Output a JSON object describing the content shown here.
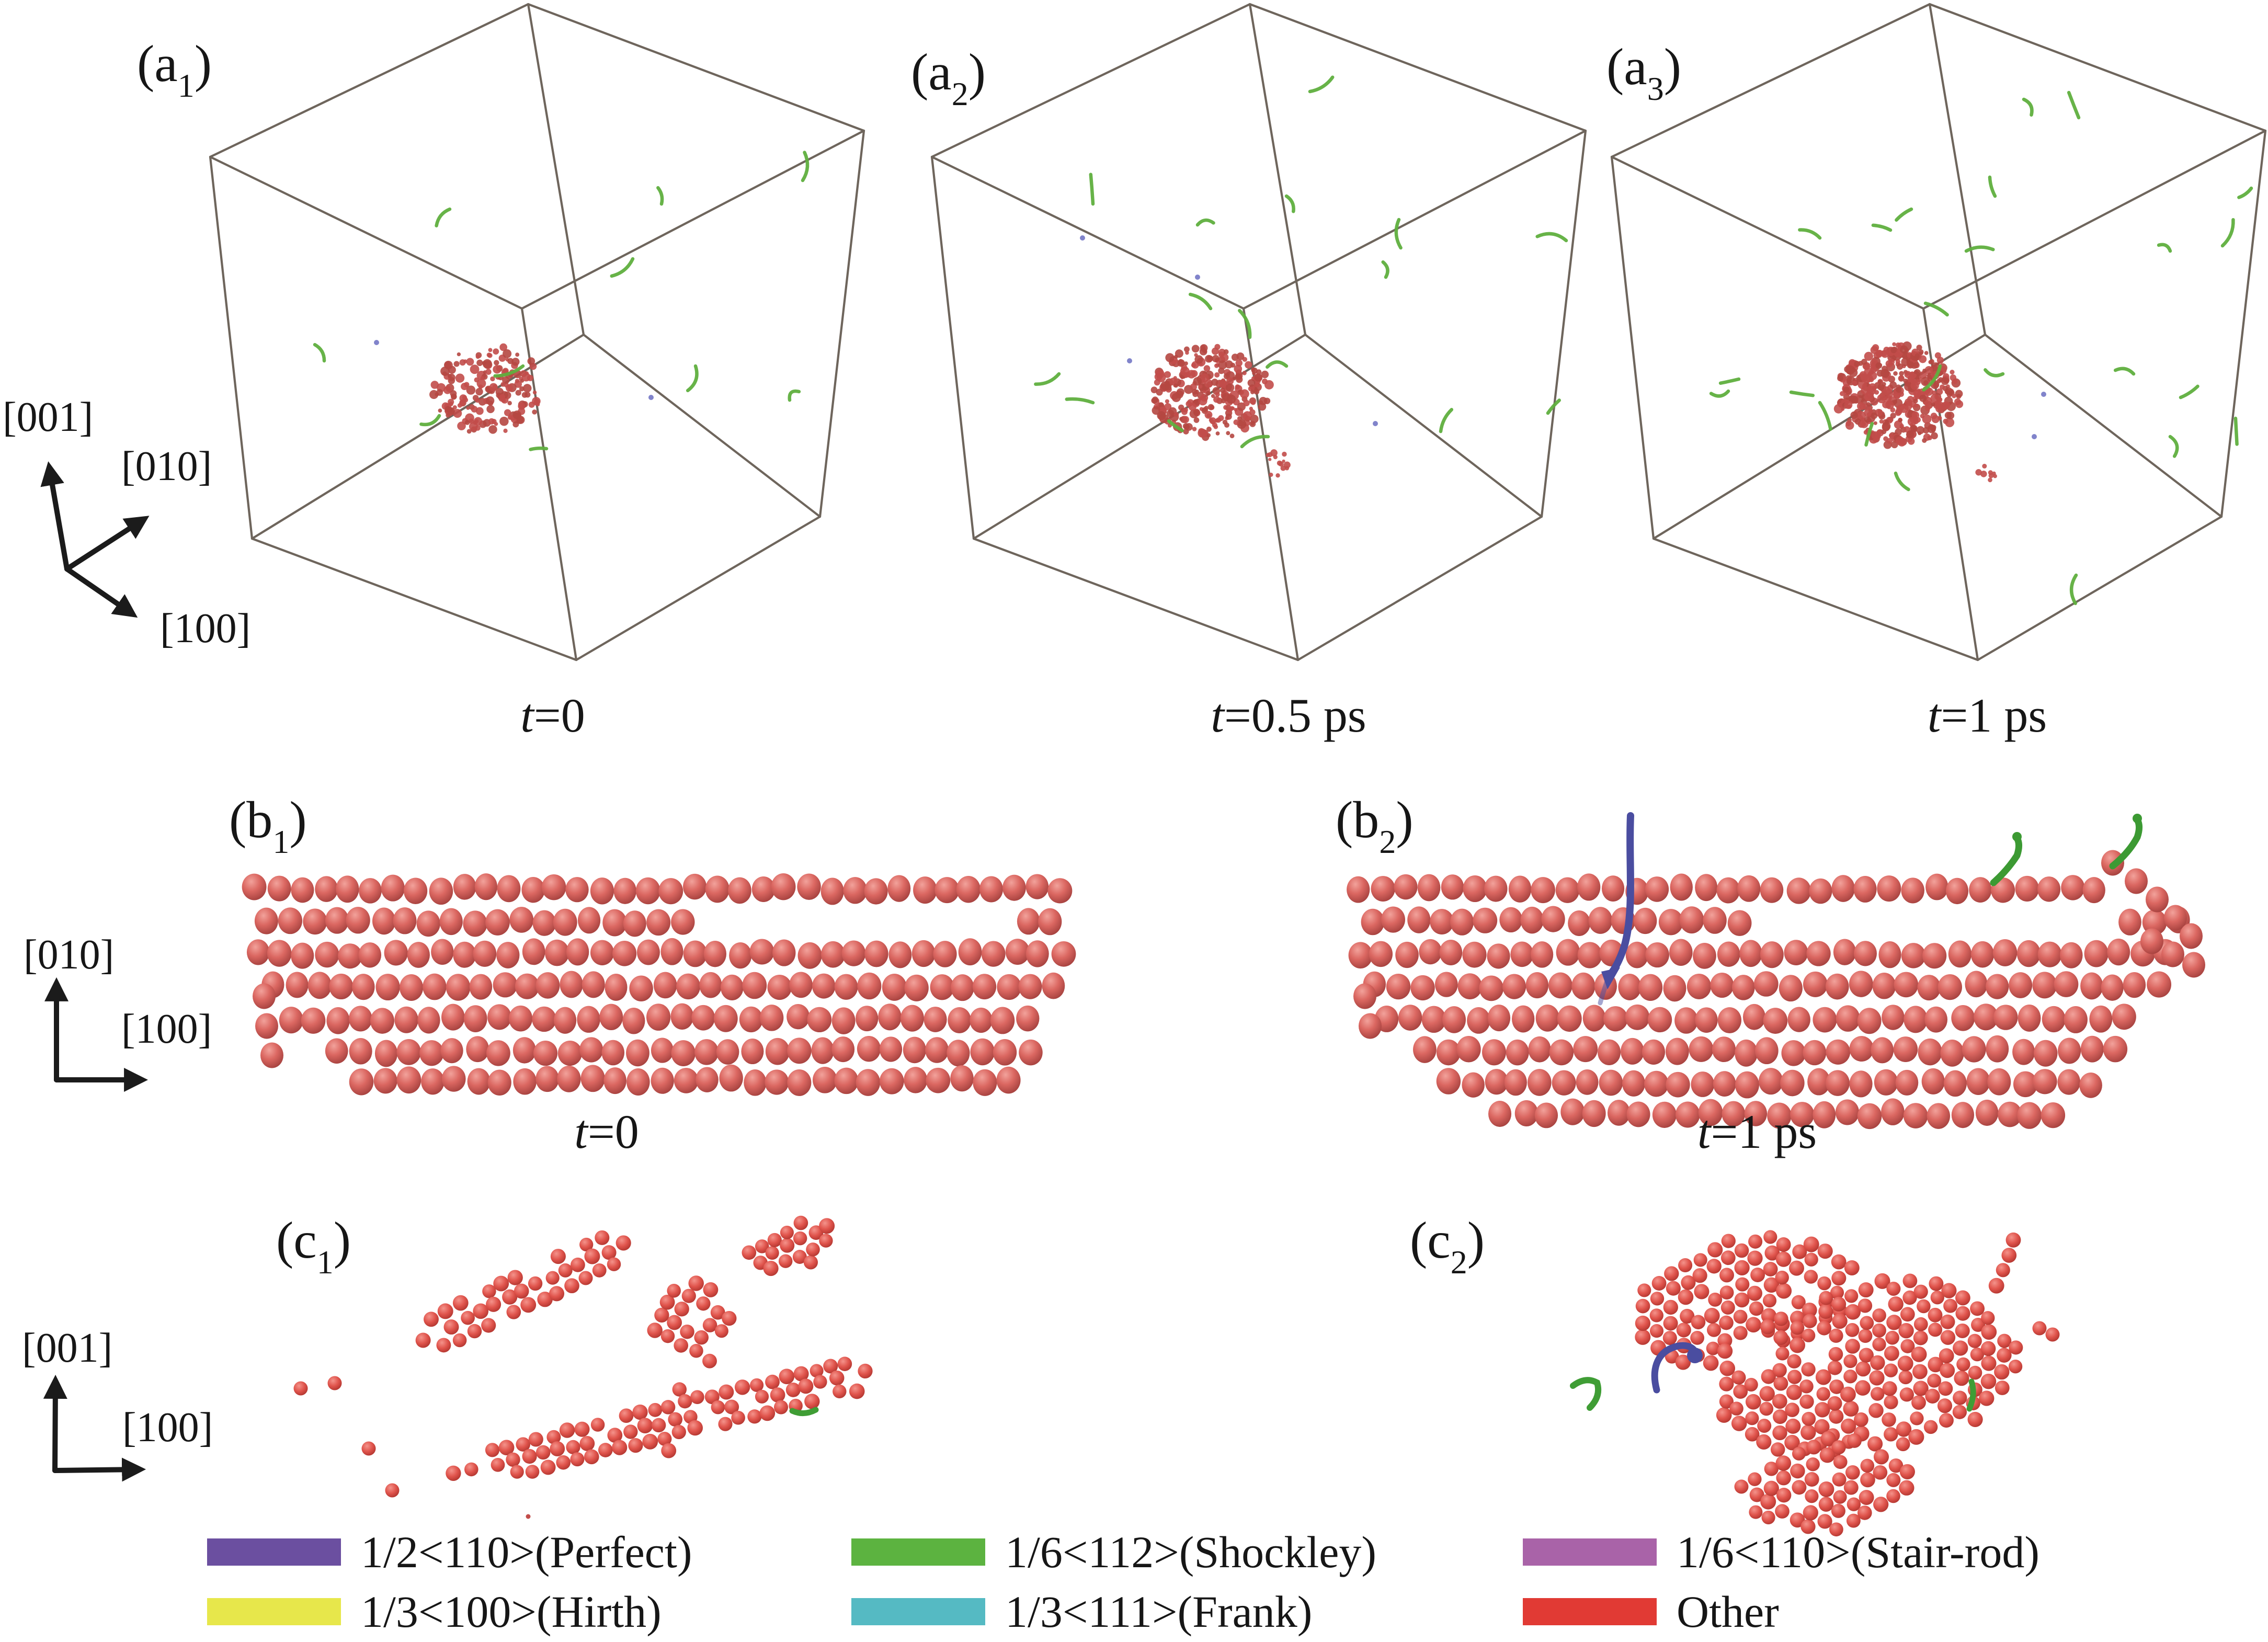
{
  "colors": {
    "perfect_purple": "#6b4fa0",
    "hirth_yellow": "#e7e74b",
    "shockley_green": "#5cb340",
    "frank_cyan": "#55bac3",
    "stairrod_magenta": "#a963a8",
    "other_red": "#e13a34",
    "cube_edge": "#6e655c",
    "cluster_red": "#c24d4a",
    "dot_blue": "#8184cb",
    "line_blue": "#4a4da0",
    "squiggle_green": "#5faf3e"
  },
  "panels_a": {
    "items": [
      {
        "label_base": "(a",
        "label_sub": "1",
        "label_close": ")",
        "time_var": "t",
        "time_rest": "=0"
      },
      {
        "label_base": "(a",
        "label_sub": "2",
        "label_close": ")",
        "time_var": "t",
        "time_rest": "=0.5 ps"
      },
      {
        "label_base": "(a",
        "label_sub": "3",
        "label_close": ")",
        "time_var": "t",
        "time_rest": "=1 ps"
      }
    ],
    "axes": {
      "up": "[001]",
      "diagonal": "[010]",
      "down_right": "[100]"
    }
  },
  "panels_b": {
    "items": [
      {
        "label_base": "(b",
        "label_sub": "1",
        "label_close": ")",
        "time_var": "t",
        "time_rest": "=0"
      },
      {
        "label_base": "(b",
        "label_sub": "2",
        "label_close": ")",
        "time_var": "t",
        "time_rest": "=1 ps"
      }
    ],
    "axes": {
      "up": "[010]",
      "right": "[100]"
    }
  },
  "panels_c": {
    "items": [
      {
        "label_base": "(c",
        "label_sub": "1",
        "label_close": ")"
      },
      {
        "label_base": "(c",
        "label_sub": "2",
        "label_close": ")"
      }
    ],
    "axes": {
      "up": "[001]",
      "right": "[100]"
    }
  },
  "legend": {
    "columns": [
      {
        "items": [
          {
            "label": "1/2<110>(Perfect)",
            "color_key": "perfect_purple"
          },
          {
            "label": "1/3<100>(Hirth)",
            "color_key": "hirth_yellow"
          }
        ]
      },
      {
        "items": [
          {
            "label": "1/6<112>(Shockley)",
            "color_key": "shockley_green"
          },
          {
            "label": "1/3<111>(Frank)",
            "color_key": "frank_cyan"
          }
        ]
      },
      {
        "items": [
          {
            "label": "1/6<110>(Stair-rod)",
            "color_key": "stairrod_magenta"
          },
          {
            "label": "Other",
            "color_key": "other_red"
          }
        ]
      }
    ]
  }
}
